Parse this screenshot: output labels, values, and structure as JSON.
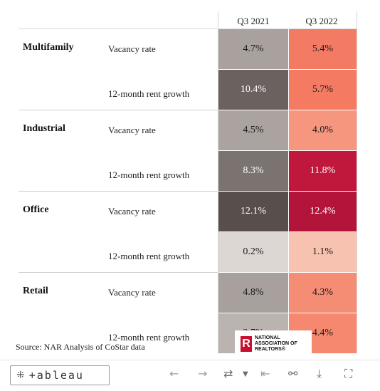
{
  "columns": [
    "Q3 2021",
    "Q3 2022"
  ],
  "rows": [
    {
      "category": "Multifamily",
      "metric": "Vacancy rate",
      "q3_2021": "4.7%",
      "q3_2022": "5.4%",
      "color_2021": "#a9a19e",
      "color_2022": "#f47b63",
      "text_2021": "#1a1a1a",
      "text_2022": "#1a1a1a"
    },
    {
      "category": "",
      "metric": "12-month rent growth",
      "q3_2021": "10.4%",
      "q3_2022": "5.7%",
      "color_2021": "#6b615e",
      "color_2022": "#f47a62",
      "text_2021": "#ffffff",
      "text_2022": "#1a1a1a"
    },
    {
      "category": "Industrial",
      "metric": "Vacancy rate",
      "q3_2021": "4.5%",
      "q3_2022": "4.0%",
      "color_2021": "#aba3a0",
      "color_2022": "#f6967e",
      "text_2021": "#1a1a1a",
      "text_2022": "#1a1a1a"
    },
    {
      "category": "",
      "metric": "12-month rent growth",
      "q3_2021": "8.3%",
      "q3_2022": "11.8%",
      "color_2021": "#7b7370",
      "color_2022": "#c0183c",
      "text_2021": "#ffffff",
      "text_2022": "#ffffff"
    },
    {
      "category": "Office",
      "metric": "Vacancy rate",
      "q3_2021": "12.1%",
      "q3_2022": "12.4%",
      "color_2021": "#584e4b",
      "color_2022": "#b3143a",
      "text_2021": "#ffffff",
      "text_2022": "#ffffff"
    },
    {
      "category": "",
      "metric": "12-month rent growth",
      "q3_2021": "0.2%",
      "q3_2022": "1.1%",
      "color_2021": "#ddd7d4",
      "color_2022": "#f8c2b0",
      "text_2021": "#1a1a1a",
      "text_2022": "#1a1a1a"
    },
    {
      "category": "Retail",
      "metric": "Vacancy rate",
      "q3_2021": "4.8%",
      "q3_2022": "4.3%",
      "color_2021": "#a8a09d",
      "color_2022": "#f58d74",
      "text_2021": "#1a1a1a",
      "text_2022": "#1a1a1a"
    },
    {
      "category": "",
      "metric": "12-month rent growth",
      "q3_2021": "3.7%",
      "q3_2022": "4.4%",
      "color_2021": "#bab3b0",
      "color_2022": "#f5886f",
      "text_2021": "#1a1a1a",
      "text_2022": "#1a1a1a"
    }
  ],
  "source": "Source: NAR Analysis of CoStar data",
  "logo": {
    "mark": "R",
    "line1": "NATIONAL",
    "line2": "ASSOCIATION OF",
    "line3": "REALTORS®"
  },
  "toolbar": {
    "brand": "+ableau",
    "icons": [
      "back-arrow-icon",
      "forward-arrow-icon",
      "revert-icon",
      "dropdown-caret-icon",
      "first-page-icon",
      "share-icon",
      "download-icon",
      "fullscreen-icon"
    ]
  }
}
